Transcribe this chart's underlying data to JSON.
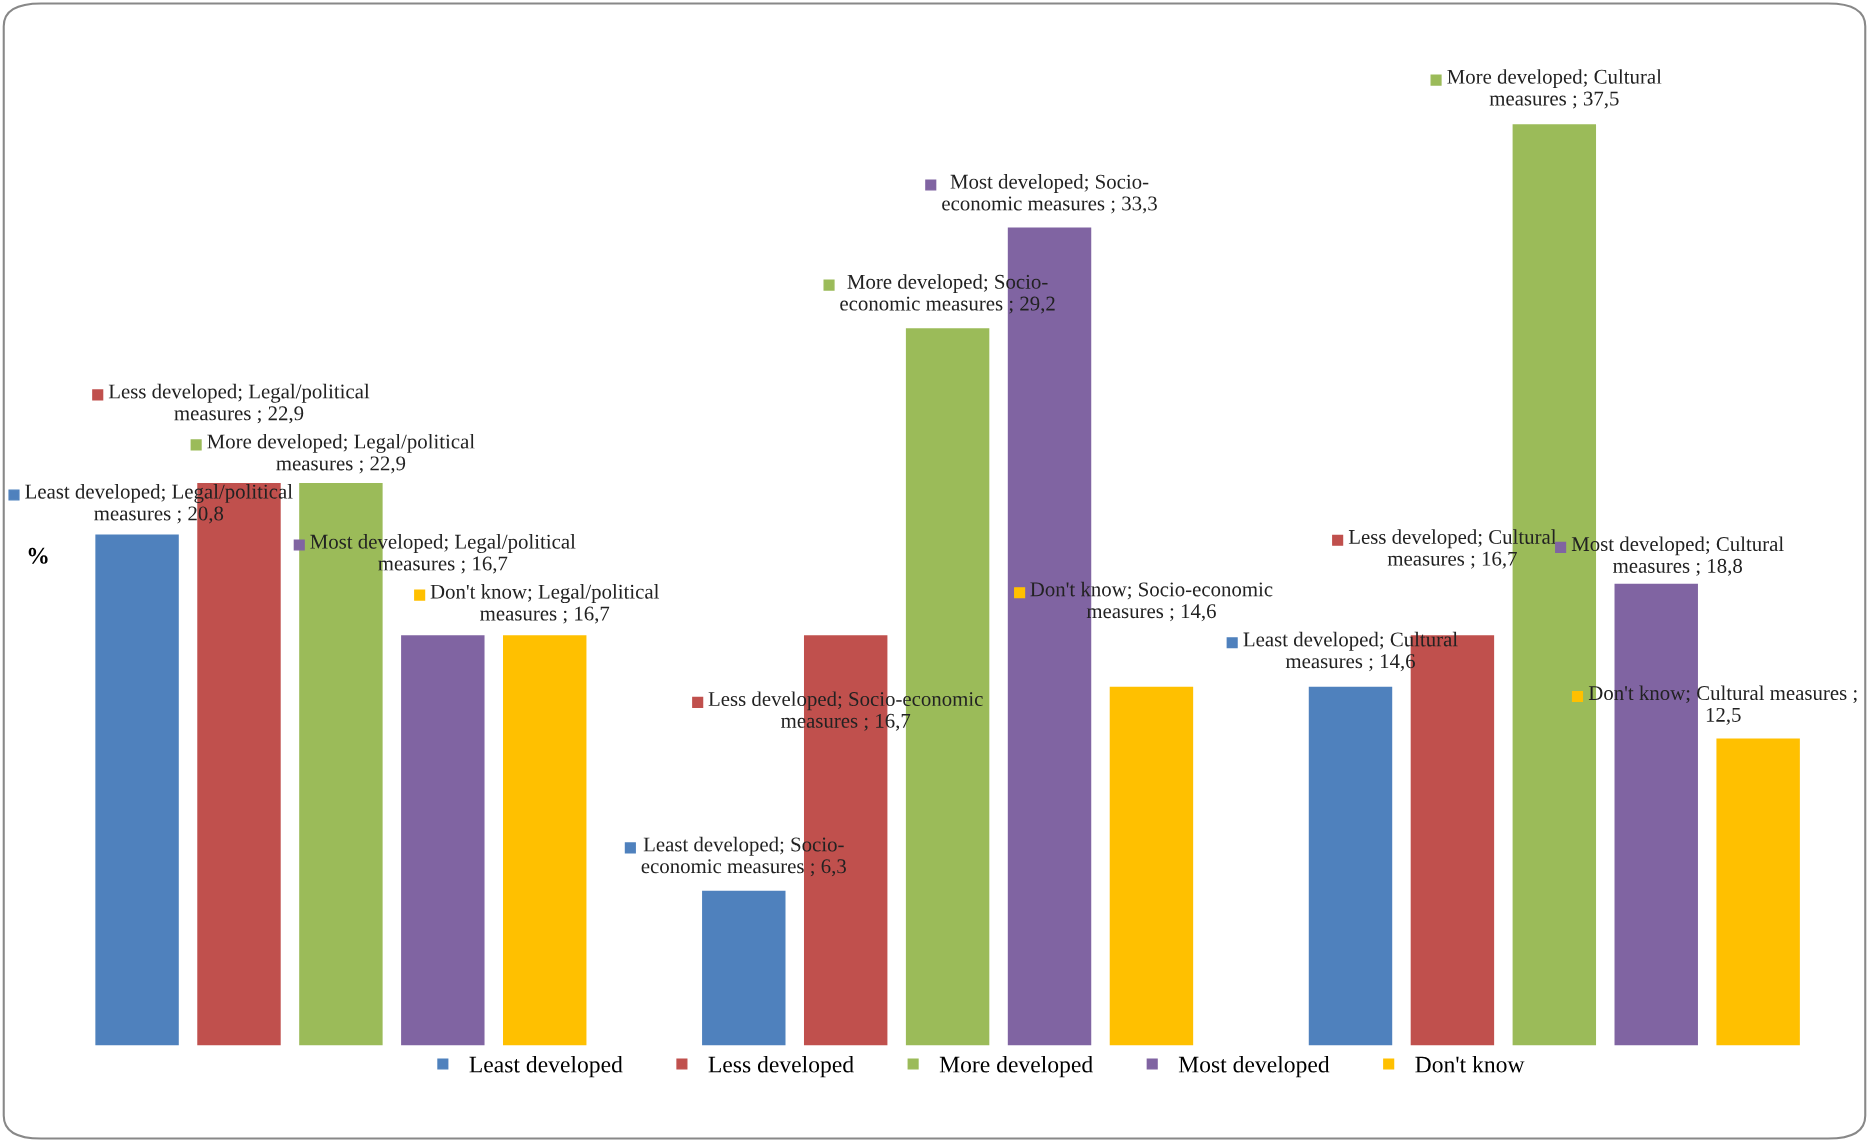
{
  "chart_data": {
    "type": "bar",
    "ylabel": "%",
    "categories": [
      null,
      null,
      null
    ],
    "series": [
      {
        "name": "Least developed",
        "color": "#4f81bd",
        "values": [
          20.8,
          6.3,
          14.6
        ],
        "value_labels": [
          "Least developed; Legal/political\nmeasures ; 20,8",
          "Least developed; Socio-\neconomic measures ; 6,3",
          "Least developed; Cultural\nmeasures ; 14,6"
        ]
      },
      {
        "name": "Less developed",
        "color": "#c0504d",
        "values": [
          22.9,
          16.7,
          16.7
        ],
        "value_labels": [
          "Less developed; Legal/political\nmeasures ; 22,9",
          "Less developed; Socio-economic\nmeasures ; 16,7",
          "Less developed; Cultural\nmeasures ; 16,7"
        ]
      },
      {
        "name": "More developed",
        "color": "#9bbb59",
        "values": [
          22.9,
          29.2,
          37.5
        ],
        "value_labels": [
          "More developed; Legal/political\nmeasures ; 22,9",
          "More developed; Socio-\neconomic measures ; 29,2",
          "More developed; Cultural\nmeasures ; 37,5"
        ]
      },
      {
        "name": "Most developed",
        "color": "#8064a2",
        "values": [
          16.7,
          33.3,
          18.8
        ],
        "value_labels": [
          "Most developed; Legal/political\nmeasures ; 16,7",
          "Most developed; Socio-\neconomic measures ; 33,3",
          "Most developed; Cultural\nmeasures ; 18,8"
        ]
      },
      {
        "name": "Don't know",
        "color": "#ffc000",
        "values": [
          16.7,
          14.6,
          12.5
        ],
        "value_labels": [
          "Don't know; Legal/political\nmeasures ; 16,7",
          "Don't know; Socio-economic\nmeasures ; 14,6",
          "Don't know; Cultural measures ;\n12,5"
        ]
      }
    ],
    "legend": "bottom",
    "grid": false
  }
}
